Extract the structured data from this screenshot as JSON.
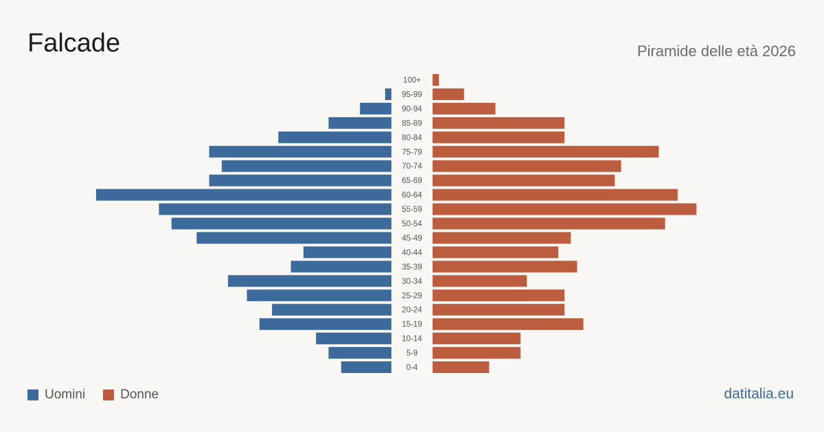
{
  "header": {
    "title": "Falcade",
    "subtitle": "Piramide delle età 2026"
  },
  "legend": {
    "men_label": "Uomini",
    "women_label": "Donne"
  },
  "footer": {
    "brand": "datitalia.eu"
  },
  "colors": {
    "men": "#3c6a9b",
    "women": "#bb5d3e",
    "label": "#555555",
    "background": "#f9f7f3"
  },
  "chart_data": {
    "type": "bar",
    "orientation": "horizontal-pyramid",
    "categories": [
      "100+",
      "95-99",
      "90-94",
      "85-89",
      "80-84",
      "75-79",
      "70-74",
      "65-69",
      "60-64",
      "55-59",
      "50-54",
      "45-49",
      "40-44",
      "35-39",
      "30-34",
      "25-29",
      "20-24",
      "15-19",
      "10-14",
      "5-9",
      "0-4"
    ],
    "series": [
      {
        "name": "Uomini",
        "values": [
          0,
          1,
          5,
          10,
          18,
          29,
          27,
          29,
          47,
          37,
          35,
          31,
          14,
          16,
          26,
          23,
          19,
          21,
          12,
          10,
          8
        ]
      },
      {
        "name": "Donne",
        "values": [
          1,
          5,
          10,
          21,
          21,
          36,
          30,
          29,
          39,
          42,
          37,
          22,
          20,
          23,
          15,
          21,
          21,
          24,
          14,
          14,
          9
        ]
      }
    ],
    "title": "Falcade",
    "subtitle": "Piramide delle età 2026",
    "legend_position": "bottom-left",
    "grid": false
  }
}
